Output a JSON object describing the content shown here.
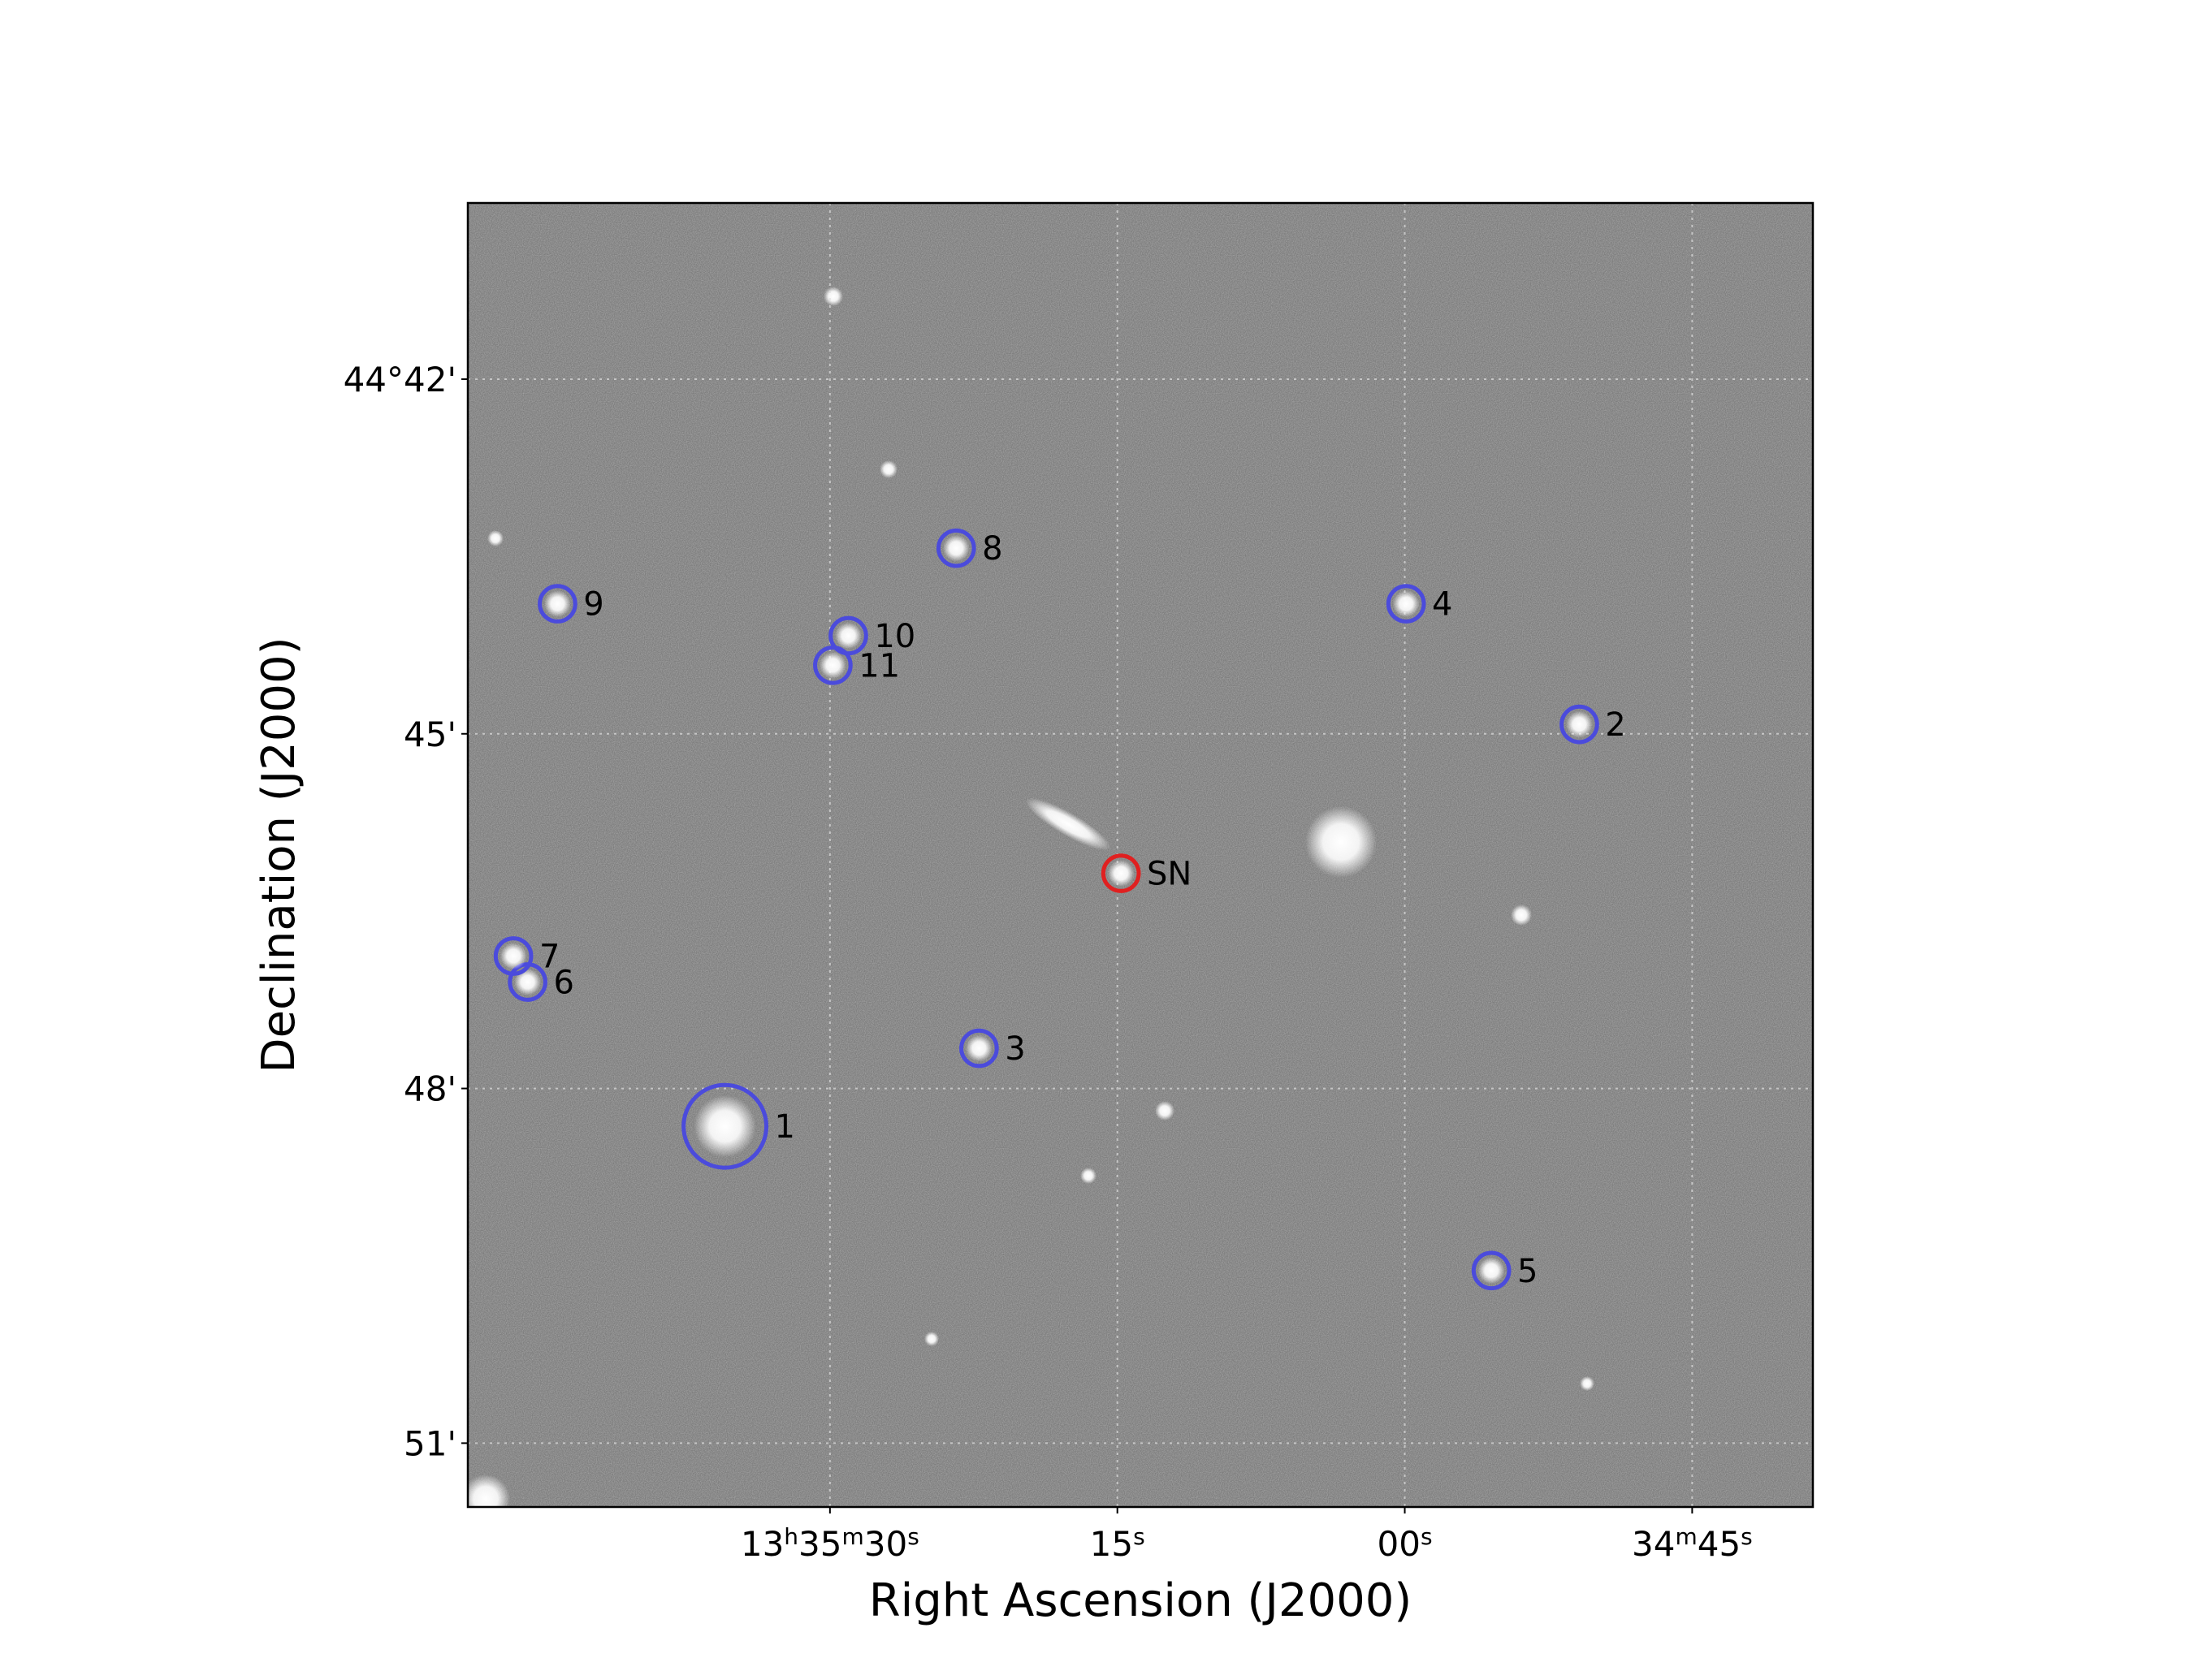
{
  "chart_data": {
    "type": "scatter",
    "xlabel": "Right Ascension (J2000)",
    "ylabel": "Declination (J2000)",
    "xlim": [
      108.9,
      38.7
    ],
    "ylim": [
      51.54,
      40.51
    ],
    "xticks": [
      {
        "value": 90,
        "label": "13h35m30s"
      },
      {
        "value": 75,
        "label": "15s"
      },
      {
        "value": 60,
        "label": "00s"
      },
      {
        "value": 45,
        "label": "34m45s"
      }
    ],
    "yticks": [
      {
        "value": 42,
        "label": "44°42'"
      },
      {
        "value": 45,
        "label": "45'"
      },
      {
        "value": 48,
        "label": "48'"
      },
      {
        "value": 51,
        "label": "51'"
      }
    ],
    "grid": true,
    "points": [
      {
        "label": "1",
        "x": 95.48,
        "y": 48.32,
        "radius": 21,
        "color": "#4b4bdc"
      },
      {
        "label": "2",
        "x": 50.89,
        "y": 44.92,
        "radius": 9,
        "color": "#4b4bdc"
      },
      {
        "label": "3",
        "x": 82.22,
        "y": 47.66,
        "radius": 9,
        "color": "#4b4bdc"
      },
      {
        "label": "4",
        "x": 59.93,
        "y": 43.9,
        "radius": 9,
        "color": "#4b4bdc"
      },
      {
        "label": "5",
        "x": 55.48,
        "y": 49.54,
        "radius": 9,
        "color": "#4b4bdc"
      },
      {
        "label": "6",
        "x": 105.78,
        "y": 47.1,
        "radius": 9,
        "color": "#4b4bdc"
      },
      {
        "label": "7",
        "x": 106.52,
        "y": 46.88,
        "radius": 9,
        "color": "#4b4bdc"
      },
      {
        "label": "8",
        "x": 83.41,
        "y": 43.43,
        "radius": 9,
        "color": "#4b4bdc"
      },
      {
        "label": "9",
        "x": 104.22,
        "y": 43.9,
        "radius": 9,
        "color": "#4b4bdc"
      },
      {
        "label": "10",
        "x": 89.04,
        "y": 44.17,
        "radius": 9,
        "color": "#4b4bdc"
      },
      {
        "label": "11",
        "x": 89.85,
        "y": 44.42,
        "radius": 9,
        "color": "#4b4bdc"
      },
      {
        "label": "SN",
        "x": 74.81,
        "y": 46.18,
        "radius": 9,
        "color": "#e02020"
      }
    ]
  }
}
